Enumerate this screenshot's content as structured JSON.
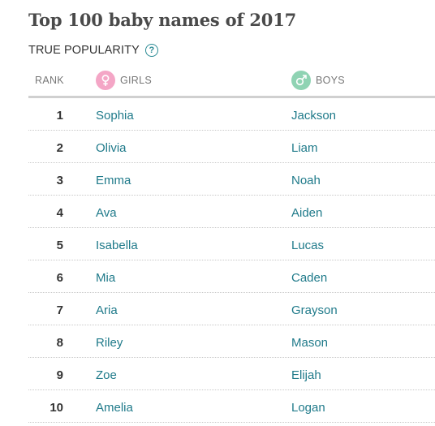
{
  "title": "Top 100 baby names of 2017",
  "subheader": {
    "label": "TRUE POPULARITY",
    "help_glyph": "?"
  },
  "columns": {
    "rank": "RANK",
    "girls": "GIRLS",
    "boys": "BOYS"
  },
  "icons": {
    "girls": "female-symbol-icon",
    "boys": "male-symbol-icon"
  },
  "colors": {
    "accent": "#1f7a8a",
    "girls_badge": "#f4a6c6",
    "boys_badge": "#8fd3b3"
  },
  "rows": [
    {
      "rank": "1",
      "girl": "Sophia",
      "boy": "Jackson"
    },
    {
      "rank": "2",
      "girl": "Olivia",
      "boy": "Liam"
    },
    {
      "rank": "3",
      "girl": "Emma",
      "boy": "Noah"
    },
    {
      "rank": "4",
      "girl": "Ava",
      "boy": "Aiden"
    },
    {
      "rank": "5",
      "girl": "Isabella",
      "boy": "Lucas"
    },
    {
      "rank": "6",
      "girl": "Mia",
      "boy": "Caden"
    },
    {
      "rank": "7",
      "girl": "Aria",
      "boy": "Grayson"
    },
    {
      "rank": "8",
      "girl": "Riley",
      "boy": "Mason"
    },
    {
      "rank": "9",
      "girl": "Zoe",
      "boy": "Elijah"
    },
    {
      "rank": "10",
      "girl": "Amelia",
      "boy": "Logan"
    }
  ]
}
